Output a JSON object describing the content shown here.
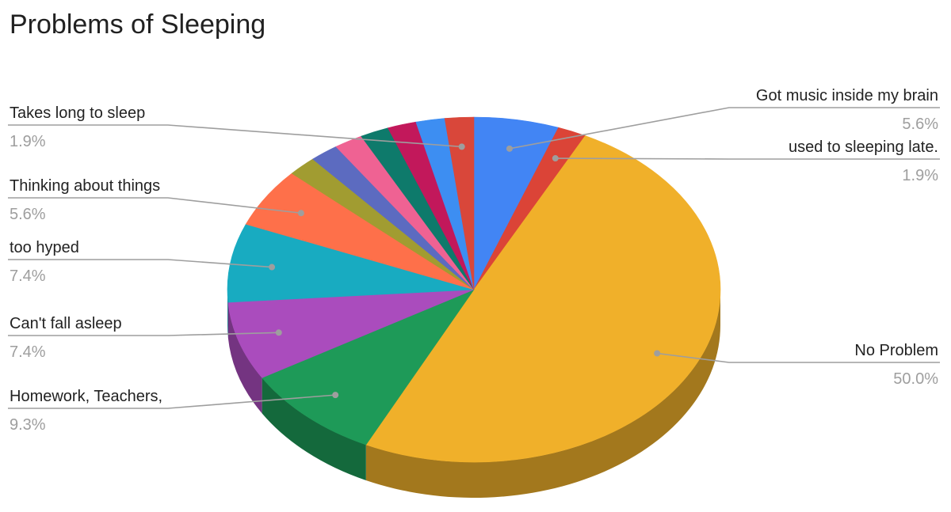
{
  "chart_data": {
    "type": "pie",
    "style": "3d",
    "title": "Problems of Sleeping",
    "slices": [
      {
        "label": "Got music inside my brain",
        "value": 5.6,
        "percent_label": "5.6%",
        "color": "#4285f4",
        "side": "right"
      },
      {
        "label": "used to sleeping late.",
        "value": 1.9,
        "percent_label": "1.9%",
        "color": "#db4437",
        "side": "right"
      },
      {
        "label": "No Problem",
        "value": 50.0,
        "percent_label": "50.0%",
        "color": "#f0b02a",
        "side": "right"
      },
      {
        "label": "Homework, Teachers,",
        "value": 9.3,
        "percent_label": "9.3%",
        "color": "#1e9a58",
        "side": "left"
      },
      {
        "label": "Can't fall asleep",
        "value": 7.4,
        "percent_label": "7.4%",
        "color": "#aa4cbd",
        "side": "left"
      },
      {
        "label": "too hyped",
        "value": 7.4,
        "percent_label": "7.4%",
        "color": "#18abc1",
        "side": "left"
      },
      {
        "label": "Thinking about things",
        "value": 5.6,
        "percent_label": "5.6%",
        "color": "#fe704a",
        "side": "left"
      },
      {
        "label": "",
        "value": 1.9,
        "percent_label": "",
        "color": "#a19c31",
        "side": "none"
      },
      {
        "label": "",
        "value": 1.9,
        "percent_label": "",
        "color": "#5c6bc0",
        "side": "none"
      },
      {
        "label": "",
        "value": 1.9,
        "percent_label": "",
        "color": "#ef6293",
        "side": "none"
      },
      {
        "label": "",
        "value": 1.9,
        "percent_label": "",
        "color": "#0e7a6b",
        "side": "none"
      },
      {
        "label": "",
        "value": 1.9,
        "percent_label": "",
        "color": "#c2185b",
        "side": "none"
      },
      {
        "label": "",
        "value": 1.9,
        "percent_label": "",
        "color": "#3d8ef2",
        "side": "none"
      },
      {
        "label": "Takes long to sleep",
        "value": 1.9,
        "percent_label": "1.9%",
        "color": "#d9473a",
        "side": "left"
      }
    ],
    "legend": "none",
    "labels": "outside with leader lines"
  }
}
